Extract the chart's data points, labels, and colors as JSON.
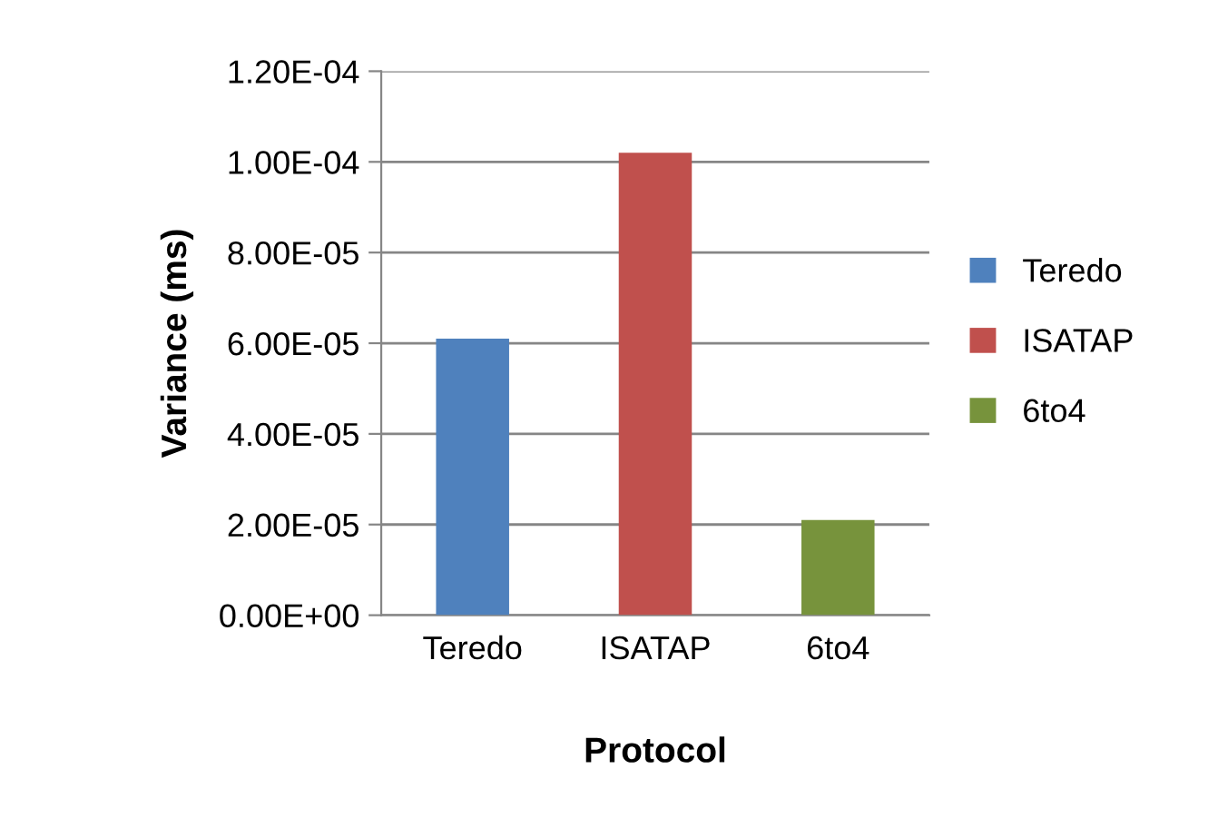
{
  "chart_data": {
    "type": "bar",
    "xlabel": "Protocol",
    "ylabel": "Variance (ms)",
    "categories": [
      "Teredo",
      "ISATAP",
      "6to4"
    ],
    "stacked": true,
    "series": [
      {
        "name": "Teredo",
        "color": "#4f81bd",
        "values": [
          6.1e-05,
          null,
          null
        ]
      },
      {
        "name": "ISATAP",
        "color": "#c0504d",
        "values": [
          null,
          0.000102,
          null
        ]
      },
      {
        "name": "6to4",
        "color": "#77933c",
        "values": [
          null,
          null,
          2.1e-05
        ]
      }
    ],
    "ylim": [
      0,
      0.00012
    ],
    "yticks": [
      {
        "value": 0,
        "label": "0.00E+00"
      },
      {
        "value": 2e-05,
        "label": "2.00E-05"
      },
      {
        "value": 4e-05,
        "label": "4.00E-05"
      },
      {
        "value": 6e-05,
        "label": "6.00E-05"
      },
      {
        "value": 8e-05,
        "label": "8.00E-05"
      },
      {
        "value": 0.0001,
        "label": "1.00E-04"
      },
      {
        "value": 0.00012,
        "label": "1.20E-04"
      }
    ],
    "grid": "y",
    "legend": "right"
  }
}
